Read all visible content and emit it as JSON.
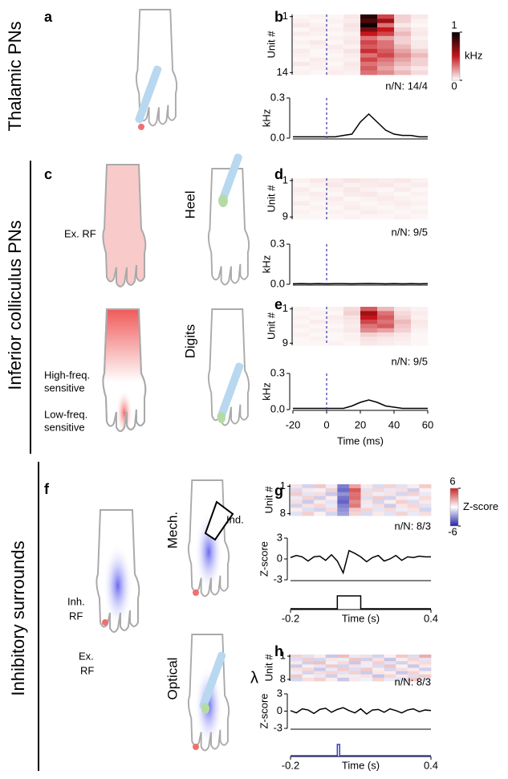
{
  "labels": {
    "sections": [
      "Thalamic PNs",
      "Inferior colliculus PNs",
      "Inhibitory surrounds"
    ],
    "panels": [
      "a",
      "b",
      "c",
      "d",
      "e",
      "f",
      "g",
      "h"
    ],
    "hand_labels": [
      "Ex. RF",
      "High-freq.",
      "sensitive",
      "Low-freq.",
      "sensitive",
      "Heel",
      "Digits",
      "Inh.",
      "RF",
      "Ex.",
      "RF",
      "Mech.",
      "Ind.",
      "Optical",
      "λ"
    ]
  },
  "chart_data": [
    {
      "type": "heatmap",
      "ylabel": "Unit #",
      "yticks": [
        1,
        14
      ],
      "xlim": [
        -20,
        60
      ],
      "onset_line": true,
      "clim": [
        0,
        1
      ],
      "colors": [
        "#ffffff",
        "#c4161c",
        "#000000"
      ],
      "colorbar": {
        "label": "kHz",
        "ticks": [
          1,
          0
        ]
      },
      "values": [
        [
          0.02,
          0.03,
          0.02,
          0.05,
          0.9,
          0.4,
          0.1,
          0.05
        ],
        [
          0.03,
          0.02,
          0.03,
          0.04,
          0.8,
          0.6,
          0.1,
          0.03
        ],
        [
          0.05,
          0.03,
          0.02,
          0.06,
          0.95,
          0.3,
          0.05,
          0.02
        ],
        [
          0.02,
          0.04,
          0.03,
          0.05,
          0.7,
          0.5,
          0.1,
          0.04
        ],
        [
          0.04,
          0.03,
          0.02,
          0.03,
          0.5,
          0.4,
          0.15,
          0.05
        ],
        [
          0.02,
          0.02,
          0.03,
          0.04,
          0.3,
          0.2,
          0.1,
          0.03
        ],
        [
          0.03,
          0.05,
          0.02,
          0.05,
          0.4,
          0.3,
          0.1,
          0.05
        ],
        [
          0.02,
          0.03,
          0.04,
          0.03,
          0.35,
          0.3,
          0.15,
          0.05
        ],
        [
          0.04,
          0.02,
          0.03,
          0.06,
          0.45,
          0.35,
          0.2,
          0.1
        ],
        [
          0.03,
          0.02,
          0.02,
          0.04,
          0.3,
          0.4,
          0.25,
          0.15
        ],
        [
          0.02,
          0.04,
          0.03,
          0.03,
          0.4,
          0.3,
          0.2,
          0.1
        ],
        [
          0.05,
          0.03,
          0.02,
          0.05,
          0.3,
          0.25,
          0.15,
          0.1
        ],
        [
          0.02,
          0.03,
          0.03,
          0.04,
          0.35,
          0.2,
          0.1,
          0.05
        ],
        [
          0.03,
          0.02,
          0.04,
          0.03,
          0.3,
          0.25,
          0.15,
          0.08
        ]
      ]
    },
    {
      "type": "line",
      "ylabel": "kHz",
      "annotation": "n/N: 14/4",
      "color": "#000000",
      "onset_line": true,
      "xlim": [
        -20,
        60
      ],
      "ylim": [
        0,
        0.3
      ],
      "yticks": [
        {
          "value": 0,
          "label": "0.0"
        },
        0.3
      ],
      "x": [
        -20,
        -15,
        -10,
        -5,
        0,
        5,
        10,
        15,
        20,
        25,
        30,
        35,
        40,
        45,
        50,
        55,
        60
      ],
      "values": [
        0.01,
        0.01,
        0.01,
        0.01,
        0.01,
        0.01,
        0.02,
        0.03,
        0.12,
        0.18,
        0.12,
        0.06,
        0.03,
        0.02,
        0.02,
        0.01,
        0.01
      ]
    },
    {
      "type": "heatmap",
      "ylabel": "Unit #",
      "yticks": [
        1,
        9
      ],
      "xlim": [
        -20,
        60
      ],
      "onset_line": true,
      "clim": [
        0,
        1
      ],
      "colors": [
        "#ffffff",
        "#c4161c",
        "#000000"
      ],
      "values": [
        [
          0.03,
          0.05,
          0.04,
          0.06,
          0.05,
          0.04,
          0.05,
          0.03
        ],
        [
          0.02,
          0.03,
          0.05,
          0.03,
          0.04,
          0.05,
          0.03,
          0.04
        ],
        [
          0.04,
          0.02,
          0.03,
          0.05,
          0.03,
          0.02,
          0.04,
          0.02
        ],
        [
          0.03,
          0.04,
          0.02,
          0.04,
          0.05,
          0.03,
          0.02,
          0.03
        ],
        [
          0.02,
          0.03,
          0.04,
          0.02,
          0.03,
          0.04,
          0.03,
          0.02
        ],
        [
          0.04,
          0.02,
          0.03,
          0.03,
          0.02,
          0.03,
          0.04,
          0.03
        ],
        [
          0.02,
          0.03,
          0.02,
          0.04,
          0.03,
          0.02,
          0.03,
          0.02
        ],
        [
          0.03,
          0.02,
          0.03,
          0.02,
          0.04,
          0.03,
          0.02,
          0.03
        ],
        [
          0.02,
          0.02,
          0.02,
          0.03,
          0.02,
          0.02,
          0.03,
          0.02
        ]
      ]
    },
    {
      "type": "line",
      "ylabel": "kHz",
      "annotation": "n/N: 9/5",
      "color": "#000000",
      "onset_line": true,
      "xlim": [
        -20,
        60
      ],
      "ylim": [
        0,
        0.3
      ],
      "yticks": [
        {
          "value": 0,
          "label": "0.0"
        },
        0.3
      ],
      "x": [
        -20,
        -15,
        -10,
        -5,
        0,
        5,
        10,
        15,
        20,
        25,
        30,
        35,
        40,
        45,
        50,
        55,
        60
      ],
      "values": [
        0.004,
        0.005,
        0.004,
        0.005,
        0.004,
        0.005,
        0.005,
        0.004,
        0.005,
        0.006,
        0.005,
        0.004,
        0.005,
        0.004,
        0.005,
        0.004,
        0.005
      ]
    },
    {
      "type": "heatmap",
      "ylabel": "Unit #",
      "yticks": [
        1,
        9
      ],
      "xlim": [
        -20,
        60
      ],
      "onset_line": true,
      "clim": [
        0,
        1
      ],
      "colors": [
        "#ffffff",
        "#c4161c",
        "#000000"
      ],
      "values": [
        [
          0.03,
          0.02,
          0.03,
          0.08,
          0.35,
          0.15,
          0.05,
          0.03
        ],
        [
          0.02,
          0.03,
          0.02,
          0.1,
          0.6,
          0.3,
          0.08,
          0.04
        ],
        [
          0.03,
          0.02,
          0.04,
          0.06,
          0.5,
          0.35,
          0.1,
          0.03
        ],
        [
          0.02,
          0.04,
          0.03,
          0.05,
          0.4,
          0.3,
          0.15,
          0.05
        ],
        [
          0.03,
          0.02,
          0.02,
          0.04,
          0.3,
          0.35,
          0.12,
          0.04
        ],
        [
          0.02,
          0.03,
          0.03,
          0.05,
          0.25,
          0.2,
          0.1,
          0.03
        ],
        [
          0.03,
          0.02,
          0.02,
          0.03,
          0.1,
          0.08,
          0.05,
          0.02
        ],
        [
          0.02,
          0.03,
          0.02,
          0.03,
          0.06,
          0.05,
          0.04,
          0.02
        ],
        [
          0.02,
          0.02,
          0.03,
          0.02,
          0.05,
          0.04,
          0.03,
          0.02
        ]
      ]
    },
    {
      "type": "line",
      "ylabel": "kHz",
      "annotation": "n/N: 9/5",
      "color": "#000000",
      "onset_line": true,
      "xlim": [
        -20,
        60
      ],
      "ylim": [
        0,
        0.3
      ],
      "yticks": [
        {
          "value": 0,
          "label": "0.0"
        },
        0.3
      ],
      "xticks": [
        -20,
        0,
        20,
        40,
        60
      ],
      "xlabel": "Time (ms)",
      "x": [
        -20,
        -15,
        -10,
        -5,
        0,
        5,
        10,
        15,
        20,
        25,
        30,
        35,
        40,
        45,
        50,
        55,
        60
      ],
      "values": [
        0.01,
        0.01,
        0.01,
        0.01,
        0.01,
        0.01,
        0.01,
        0.03,
        0.06,
        0.08,
        0.06,
        0.03,
        0.02,
        0.01,
        0.01,
        0.01,
        0.01
      ]
    },
    {
      "type": "heatmap",
      "ylabel": "Unit #",
      "yticks": [
        1,
        8
      ],
      "xlim": [
        -0.2,
        0.4
      ],
      "clim": [
        -6,
        6
      ],
      "colors": [
        "#2222aa",
        "#ffffff",
        "#cc2222"
      ],
      "colorbar": {
        "label": "Z-score",
        "ticks": [
          6,
          -6
        ]
      },
      "values": [
        [
          0.8,
          -1.2,
          1.5,
          -0.5,
          -3.5,
          2.5,
          0.6,
          -1.0,
          1.2,
          -0.8,
          0.5,
          1.4
        ],
        [
          -1.0,
          0.6,
          -0.4,
          1.3,
          -4.0,
          4.5,
          -0.8,
          1.1,
          -0.6,
          0.9,
          -1.3,
          0.4
        ],
        [
          1.4,
          -0.7,
          0.9,
          -1.5,
          -3.0,
          3.8,
          1.0,
          -0.5,
          0.8,
          -1.1,
          1.2,
          -0.6
        ],
        [
          -0.6,
          1.2,
          -1.3,
          0.5,
          -3.8,
          4.0,
          -0.9,
          1.4,
          -1.2,
          0.6,
          -0.4,
          1.0
        ],
        [
          0.9,
          -1.4,
          0.6,
          -0.8,
          -4.2,
          3.2,
          0.7,
          -1.1,
          0.5,
          1.3,
          -0.9,
          0.6
        ],
        [
          -1.2,
          0.8,
          1.1,
          -0.6,
          -3.4,
          3.6,
          -0.5,
          0.9,
          -1.4,
          0.7,
          1.1,
          -0.8
        ],
        [
          0.5,
          -0.9,
          -1.2,
          1.0,
          -3.0,
          1.5,
          1.2,
          -0.7,
          1.0,
          -0.5,
          0.8,
          -1.2
        ],
        [
          -0.8,
          1.3,
          0.4,
          -1.1,
          -2.6,
          1.2,
          -1.0,
          0.6,
          -0.8,
          1.2,
          -0.6,
          0.9
        ]
      ]
    },
    {
      "type": "line",
      "ylabel": "Z-score",
      "annotation": "n/N: 8/3",
      "color": "#000000",
      "xlim": [
        -0.2,
        0.4
      ],
      "ylim": [
        -3,
        3
      ],
      "yticks": [
        3,
        0,
        -3
      ],
      "x": [
        -0.2,
        -0.175,
        -0.15,
        -0.125,
        -0.1,
        -0.075,
        -0.05,
        -0.025,
        0,
        0.025,
        0.05,
        0.075,
        0.1,
        0.125,
        0.15,
        0.175,
        0.2,
        0.225,
        0.25,
        0.275,
        0.3,
        0.325,
        0.35,
        0.375,
        0.4
      ],
      "values": [
        0.2,
        0.5,
        0.3,
        -0.3,
        0.3,
        0.4,
        -0.2,
        0.6,
        -0.3,
        -2.0,
        1.2,
        0.8,
        0.3,
        -0.4,
        0.2,
        0.5,
        -0.3,
        0,
        0.5,
        -0.2,
        0.3,
        0.2,
        0.4,
        0.3,
        0.3
      ]
    },
    {
      "type": "step",
      "color": "#000000",
      "xlim": [
        -0.2,
        0.4
      ],
      "ylim": [
        0,
        1
      ],
      "xticks": [
        -0.2,
        0.4
      ],
      "xlabel": "Time (s)",
      "x": [
        -0.2,
        0,
        0,
        0.1,
        0.1,
        0.4
      ],
      "values": [
        0,
        0,
        1,
        1,
        0,
        0
      ]
    },
    {
      "type": "heatmap",
      "ylabel": "Unit #",
      "yticks": [
        1,
        8
      ],
      "xlim": [
        -0.2,
        0.4
      ],
      "clim": [
        -6,
        6
      ],
      "colors": [
        "#2222aa",
        "#ffffff",
        "#cc2222"
      ],
      "values": [
        [
          1.2,
          -0.8,
          0.5,
          -1.5,
          1.8,
          -0.6,
          0.9,
          -1.2,
          0.4,
          1.5,
          -0.9,
          2.2
        ],
        [
          -0.9,
          1.4,
          -1.1,
          0.7,
          -0.5,
          1.6,
          -1.3,
          0.8,
          -1.6,
          0.5,
          1.1,
          -0.7
        ],
        [
          0.6,
          -1.3,
          1.7,
          -0.4,
          1.0,
          -1.5,
          0.6,
          1.3,
          -0.8,
          -1.2,
          0.7,
          1.0
        ],
        [
          -1.4,
          0.5,
          -0.7,
          1.5,
          -1.2,
          0.8,
          -0.5,
          -1.0,
          1.6,
          0.4,
          -1.5,
          0.6
        ],
        [
          0.8,
          1.1,
          -1.5,
          -0.6,
          1.4,
          -0.9,
          1.5,
          0.5,
          -1.1,
          0.9,
          0.6,
          -1.3
        ],
        [
          -0.5,
          -1.2,
          0.9,
          1.2,
          -0.8,
          1.3,
          -1.4,
          0.7,
          0.5,
          -1.5,
          1.2,
          0.4
        ],
        [
          1.5,
          0.4,
          -0.6,
          -1.3,
          0.6,
          -0.5,
          0.8,
          -1.6,
          1.1,
          0.6,
          -0.9,
          1.4
        ],
        [
          -1.1,
          0.9,
          1.3,
          0.5,
          -1.5,
          0.7,
          -0.4,
          1.2,
          -0.6,
          -0.8,
          1.5,
          -0.5
        ]
      ]
    },
    {
      "type": "line",
      "ylabel": "Z-score",
      "annotation": "n/N: 8/3",
      "color": "#000000",
      "xlim": [
        -0.2,
        0.4
      ],
      "ylim": [
        -3,
        3
      ],
      "yticks": [
        3,
        0,
        -3
      ],
      "x": [
        -0.2,
        -0.175,
        -0.15,
        -0.125,
        -0.1,
        -0.075,
        -0.05,
        -0.025,
        0,
        0.025,
        0.05,
        0.075,
        0.1,
        0.125,
        0.15,
        0.175,
        0.2,
        0.225,
        0.25,
        0.275,
        0.3,
        0.325,
        0.35,
        0.375,
        0.4
      ],
      "values": [
        0.1,
        -0.3,
        0.4,
        0.2,
        -0.4,
        0.3,
        0.5,
        -0.2,
        0.3,
        0.6,
        0.1,
        -0.3,
        0.4,
        -0.5,
        0.2,
        0.3,
        -0.2,
        0.4,
        0.1,
        -0.3,
        0.2,
        0.4,
        -0.1,
        0.2,
        0.1
      ]
    },
    {
      "type": "step",
      "color": "#3b3bbf",
      "xlim": [
        -0.2,
        0.4
      ],
      "ylim": [
        0,
        1
      ],
      "xticks": [
        -0.2,
        0.4
      ],
      "xlabel": "Time (s)",
      "x": [
        -0.2,
        0,
        0,
        0.01,
        0.01,
        0.4
      ],
      "values": [
        0,
        0,
        1,
        1,
        0,
        0
      ]
    }
  ]
}
